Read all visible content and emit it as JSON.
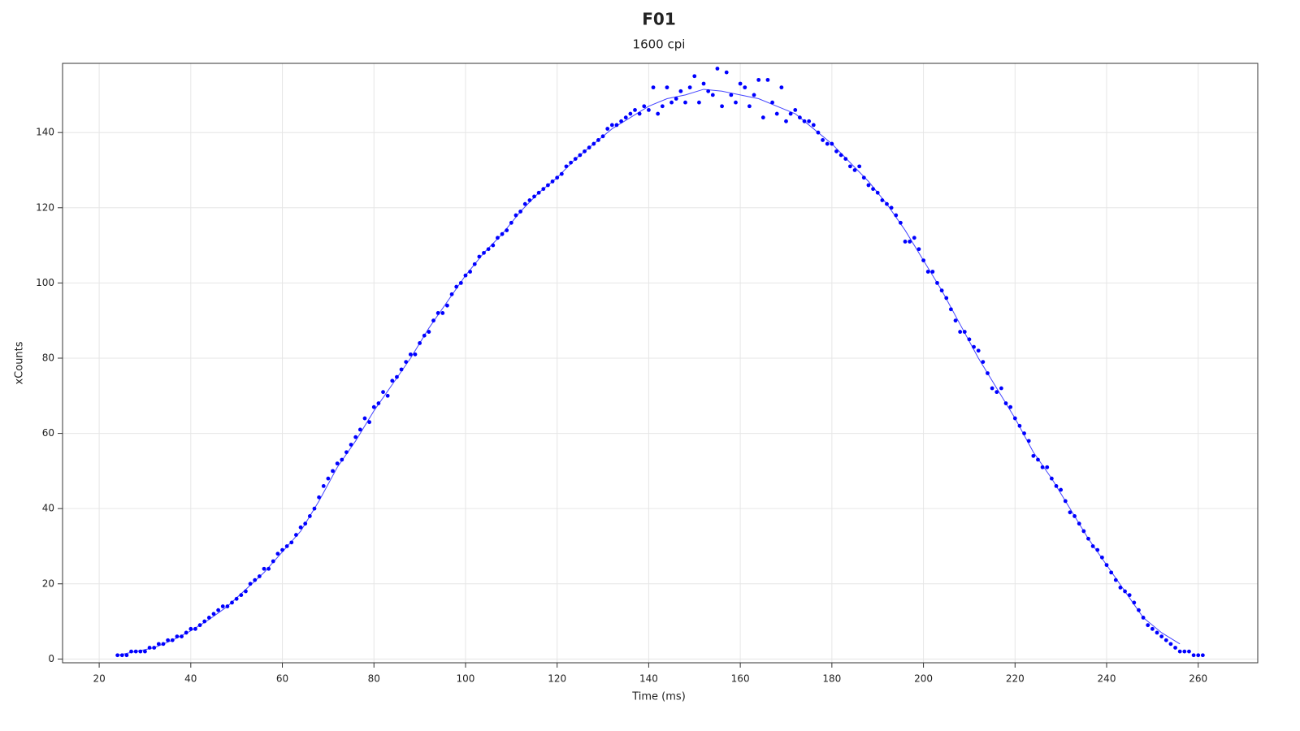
{
  "chart_data": {
    "type": "scatter",
    "title": "F01",
    "subtitle": "1600 cpi",
    "x_label": "Time (ms)",
    "y_label": "xCounts",
    "xlim": [
      12,
      273
    ],
    "ylim": [
      -1,
      158.4
    ],
    "xticks": [
      20,
      40,
      60,
      80,
      100,
      120,
      140,
      160,
      180,
      200,
      220,
      240,
      260
    ],
    "yticks": [
      0,
      20,
      40,
      60,
      80,
      100,
      120,
      140
    ],
    "grid": true,
    "points": {
      "color": "#0000ff",
      "x": [
        24,
        25,
        26,
        27,
        28,
        29,
        30,
        31,
        32,
        33,
        34,
        35,
        36,
        37,
        38,
        39,
        40,
        41,
        42,
        43,
        44,
        45,
        46,
        47,
        48,
        49,
        50,
        51,
        52,
        53,
        54,
        55,
        56,
        57,
        58,
        59,
        60,
        61,
        62,
        63,
        64,
        65,
        66,
        67,
        68,
        69,
        70,
        71,
        72,
        73,
        74,
        75,
        76,
        77,
        78,
        79,
        80,
        81,
        82,
        83,
        84,
        85,
        86,
        87,
        88,
        89,
        90,
        91,
        92,
        93,
        94,
        95,
        96,
        97,
        98,
        99,
        100,
        101,
        102,
        103,
        104,
        105,
        106,
        107,
        108,
        109,
        110,
        111,
        112,
        113,
        114,
        115,
        116,
        117,
        118,
        119,
        120,
        121,
        122,
        123,
        124,
        125,
        126,
        127,
        128,
        129,
        130,
        131,
        132,
        133,
        134,
        135,
        136,
        137,
        138,
        139,
        140,
        141,
        142,
        143,
        144,
        145,
        146,
        147,
        148,
        149,
        150,
        151,
        152,
        153,
        154,
        155,
        156,
        157,
        158,
        159,
        160,
        161,
        162,
        163,
        164,
        165,
        166,
        167,
        168,
        169,
        170,
        171,
        172,
        173,
        174,
        175,
        176,
        177,
        178,
        179,
        180,
        181,
        182,
        183,
        184,
        185,
        186,
        187,
        188,
        189,
        190,
        191,
        192,
        193,
        194,
        195,
        196,
        197,
        198,
        199,
        200,
        201,
        202,
        203,
        204,
        205,
        206,
        207,
        208,
        209,
        210,
        211,
        212,
        213,
        214,
        215,
        216,
        217,
        218,
        219,
        220,
        221,
        222,
        223,
        224,
        225,
        226,
        227,
        228,
        229,
        230,
        231,
        232,
        233,
        234,
        235,
        236,
        237,
        238,
        239,
        240,
        241,
        242,
        243,
        244,
        245,
        246,
        247,
        248,
        249,
        250,
        251,
        252,
        253,
        254,
        255,
        256,
        257,
        258,
        259,
        260,
        261
      ],
      "values": [
        1,
        1,
        1,
        2,
        2,
        2,
        2,
        3,
        3,
        4,
        4,
        5,
        5,
        6,
        6,
        7,
        8,
        8,
        9,
        10,
        11,
        12,
        13,
        14,
        14,
        15,
        16,
        17,
        18,
        20,
        21,
        22,
        24,
        24,
        26,
        28,
        29,
        30,
        31,
        33,
        35,
        36,
        38,
        40,
        43,
        46,
        48,
        50,
        52,
        53,
        55,
        57,
        59,
        61,
        64,
        63,
        67,
        68,
        71,
        70,
        74,
        75,
        77,
        79,
        81,
        81,
        84,
        86,
        87,
        90,
        92,
        92,
        94,
        97,
        99,
        100,
        102,
        103,
        105,
        107,
        108,
        109,
        110,
        112,
        113,
        114,
        116,
        118,
        119,
        121,
        122,
        123,
        124,
        125,
        126,
        127,
        128,
        129,
        131,
        132,
        133,
        134,
        135,
        136,
        137,
        138,
        139,
        141,
        142,
        142,
        143,
        144,
        145,
        146,
        145,
        147,
        146,
        152,
        145,
        147,
        152,
        148,
        149,
        151,
        148,
        152,
        155,
        148,
        153,
        151,
        150,
        157,
        147,
        156,
        150,
        148,
        153,
        152,
        147,
        150,
        154,
        144,
        154,
        148,
        145,
        152,
        143,
        145,
        146,
        144,
        143,
        143,
        142,
        140,
        138,
        137,
        137,
        135,
        134,
        133,
        131,
        130,
        131,
        128,
        126,
        125,
        124,
        122,
        121,
        120,
        118,
        116,
        111,
        111,
        112,
        109,
        106,
        103,
        103,
        100,
        98,
        96,
        93,
        90,
        87,
        87,
        85,
        83,
        82,
        79,
        76,
        72,
        71,
        72,
        68,
        67,
        64,
        62,
        60,
        58,
        54,
        53,
        51,
        51,
        48,
        46,
        45,
        42,
        39,
        38,
        36,
        34,
        32,
        30,
        29,
        27,
        25,
        23,
        21,
        19,
        18,
        17,
        15,
        13,
        11,
        9,
        8,
        7,
        6,
        5,
        4,
        3,
        2,
        2,
        2,
        1,
        1,
        1
      ]
    },
    "fit_line": {
      "color": "#4444ff",
      "x": [
        24,
        28,
        32,
        36,
        40,
        44,
        48,
        52,
        56,
        60,
        64,
        68,
        72,
        76,
        80,
        84,
        88,
        92,
        96,
        100,
        104,
        108,
        112,
        116,
        120,
        124,
        128,
        132,
        136,
        140,
        144,
        148,
        152,
        156,
        160,
        164,
        168,
        172,
        176,
        180,
        184,
        188,
        192,
        196,
        200,
        204,
        208,
        212,
        216,
        220,
        224,
        228,
        232,
        236,
        240,
        244,
        248,
        252,
        256
      ],
      "values": [
        1,
        2,
        3,
        5,
        7.5,
        10.5,
        14,
        18.5,
        23,
        28.5,
        34,
        42,
        51,
        58,
        66,
        73,
        80,
        88,
        95,
        102,
        108,
        113,
        119,
        124,
        128,
        133,
        137,
        141,
        144,
        147,
        149,
        150,
        151.5,
        151,
        150,
        149,
        147,
        145,
        141,
        137,
        132,
        127,
        121,
        114,
        106,
        98,
        89,
        80,
        72,
        64,
        55,
        48,
        40,
        32,
        25,
        18,
        11,
        7,
        4
      ]
    }
  }
}
